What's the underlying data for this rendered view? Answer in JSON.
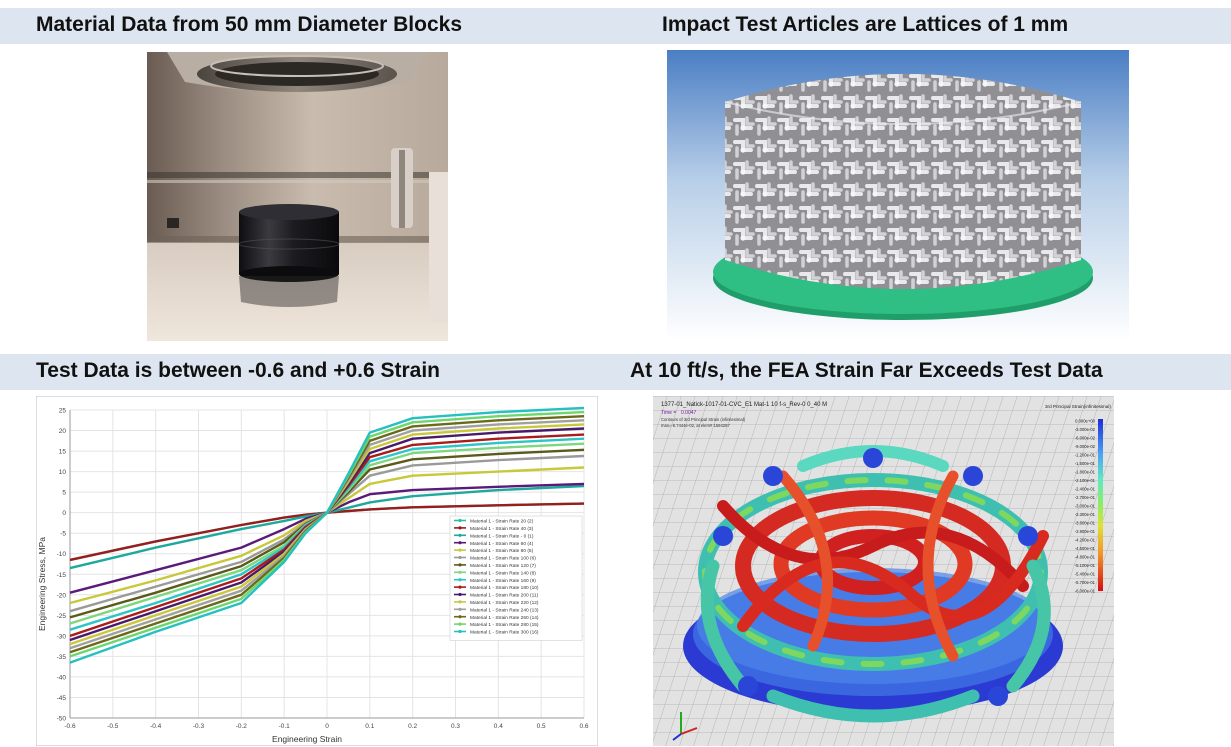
{
  "headings": {
    "top_left": "Material Data from 50 mm Diameter Blocks",
    "top_right": "Impact Test Articles are Lattices of 1 mm",
    "bottom_left": "Test Data is between -0.6 and +0.6 Strain",
    "bottom_right": "At 10 ft/s, the FEA Strain Far Exceeds Test Data"
  },
  "fea": {
    "title": "1377-01_Natick-1017-01-CVC_E1 Mat-1 10 f-s_Rev-0 0_40 M",
    "time_label": "Time =",
    "time_value": "0.0047",
    "contour_line1": "Contours of 3rd Principal Strain (infinitesimal)",
    "contour_line2": "max=-6.7444e-02, at elem# 1594287",
    "legend_title": "3rd Principal Strain(infinitesimal)",
    "legend_values": [
      "0.000e+00",
      "-3.000e-02",
      "-6.000e-02",
      "-9.000e-02",
      "-1.200e-01",
      "-1.500e-01",
      "-1.800e-01",
      "-2.100e-01",
      "-2.400e-01",
      "-2.700e-01",
      "-3.000e-01",
      "-3.300e-01",
      "-3.600e-01",
      "-3.900e-01",
      "-4.200e-01",
      "-4.500e-01",
      "-4.800e-01",
      "-5.100e-01",
      "-5.400e-01",
      "-5.700e-01",
      "-6.000e-01"
    ],
    "legend_colors": [
      "#1e2cd8",
      "#2a4ce8",
      "#3a74f0",
      "#4aa0f4",
      "#52c4f0",
      "#58dce0",
      "#5ee8c4",
      "#66eca4",
      "#76ee84",
      "#8cee62",
      "#a6ec48",
      "#c2e83c",
      "#dce236",
      "#ecd030",
      "#f2b42c",
      "#f29628",
      "#ee7624",
      "#e85620",
      "#e2381c",
      "#dc2018",
      "#d80c14"
    ]
  },
  "chart_data": {
    "type": "line",
    "title": "",
    "xlabel": "Engineering Strain",
    "ylabel": "Engineering Stress, MPa",
    "xlim": [
      -0.6,
      0.6
    ],
    "ylim": [
      -50,
      25
    ],
    "xticks": [
      "-0.6",
      "-0.5",
      "-0.4",
      "-0.3",
      "-0.2",
      "-0.1",
      "0",
      "0.1",
      "0.2",
      "0.3",
      "0.4",
      "0.5",
      "0.6"
    ],
    "yticks": [
      "25",
      "20",
      "15",
      "10",
      "5",
      "0",
      "-5",
      "-10",
      "-15",
      "-20",
      "-25",
      "-30",
      "-35",
      "-40",
      "-45",
      "-50"
    ],
    "grid": true,
    "legend_position": "right",
    "series": [
      {
        "name": "Material 1 - Strain Rate 20 (2)",
        "color": "#2fbfa0",
        "x": [
          -0.6,
          -0.4,
          -0.2,
          -0.1,
          -0.05,
          0,
          0.05,
          0.1,
          0.2,
          0.4,
          0.6
        ],
        "y": [
          -11.5,
          -7,
          -3,
          -1.2,
          -0.5,
          0,
          0.4,
          0.8,
          1.3,
          1.8,
          2.2
        ]
      },
      {
        "name": "Material 1 - Strain Rate 40 (3)",
        "color": "#9b1c1c",
        "x": [
          -0.6,
          -0.4,
          -0.2,
          -0.1,
          -0.05,
          0,
          0.05,
          0.1,
          0.2,
          0.4,
          0.6
        ],
        "y": [
          -11.5,
          -7,
          -3,
          -1.2,
          -0.5,
          0,
          0.4,
          0.8,
          1.3,
          1.8,
          2.2
        ]
      },
      {
        "name": "Material 1 - Strain Rate - 0 (1)",
        "color": "#1fa89c",
        "x": [
          -0.6,
          -0.4,
          -0.2,
          -0.1,
          -0.05,
          0,
          0.05,
          0.1,
          0.2,
          0.4,
          0.6
        ],
        "y": [
          -13.5,
          -8.5,
          -4,
          -2,
          -0.9,
          0,
          1.2,
          2.5,
          4,
          5.5,
          6.5
        ]
      },
      {
        "name": "Material 1 - Strain Rate 60 (4)",
        "color": "#5a1a7a",
        "x": [
          -0.6,
          -0.4,
          -0.2,
          -0.1,
          -0.05,
          0,
          0.05,
          0.1,
          0.2,
          0.4,
          0.6
        ],
        "y": [
          -19.5,
          -14,
          -8.5,
          -4,
          -1.5,
          0,
          2.5,
          4.5,
          5.5,
          6.3,
          7
        ]
      },
      {
        "name": "Material 1 - Strain Rate 80 (5)",
        "color": "#c8c83a",
        "x": [
          -0.6,
          -0.4,
          -0.2,
          -0.1,
          -0.05,
          0,
          0.05,
          0.1,
          0.2,
          0.4,
          0.6
        ],
        "y": [
          -22,
          -16.5,
          -10.5,
          -5.5,
          -2,
          0,
          3.5,
          7,
          9,
          10,
          11
        ]
      },
      {
        "name": "Material 1 - Strain Rate 100 (6)",
        "color": "#9a9a9a",
        "x": [
          -0.6,
          -0.4,
          -0.2,
          -0.1,
          -0.05,
          0,
          0.05,
          0.1,
          0.2,
          0.4,
          0.6
        ],
        "y": [
          -24,
          -18,
          -12,
          -6.5,
          -2.5,
          0,
          4.5,
          9,
          11.5,
          12.8,
          13.8
        ]
      },
      {
        "name": "Material 1 - Strain Rate 120 (7)",
        "color": "#5a5a1a",
        "x": [
          -0.6,
          -0.4,
          -0.2,
          -0.1,
          -0.05,
          0,
          0.05,
          0.1,
          0.2,
          0.4,
          0.6
        ],
        "y": [
          -25.5,
          -19.5,
          -13,
          -7.2,
          -2.8,
          0,
          5,
          10.5,
          13,
          14.3,
          15.3
        ]
      },
      {
        "name": "Material 1 - Strain Rate 140 (8)",
        "color": "#7ed67e",
        "x": [
          -0.6,
          -0.4,
          -0.2,
          -0.1,
          -0.05,
          0,
          0.05,
          0.1,
          0.2,
          0.4,
          0.6
        ],
        "y": [
          -27,
          -20.5,
          -14,
          -8,
          -3,
          0,
          5.5,
          11.5,
          14.5,
          15.8,
          16.8
        ]
      },
      {
        "name": "Material 1 - Strain Rate 160 (9)",
        "color": "#2cc6c6",
        "x": [
          -0.6,
          -0.4,
          -0.2,
          -0.1,
          -0.05,
          0,
          0.05,
          0.1,
          0.2,
          0.4,
          0.6
        ],
        "y": [
          -28.5,
          -22,
          -15,
          -8.5,
          -3.2,
          0,
          6,
          12.5,
          15.5,
          17,
          18
        ]
      },
      {
        "name": "Material 1 - Strain Rate 180 (10)",
        "color": "#aa1c1c",
        "x": [
          -0.6,
          -0.4,
          -0.2,
          -0.1,
          -0.05,
          0,
          0.05,
          0.1,
          0.2,
          0.4,
          0.6
        ],
        "y": [
          -30,
          -23,
          -16,
          -9,
          -3.5,
          0,
          6.5,
          13.5,
          16.5,
          18,
          19
        ]
      },
      {
        "name": "Material 1 - Strain Rate 200 (11)",
        "color": "#4a1a6a",
        "x": [
          -0.6,
          -0.4,
          -0.2,
          -0.1,
          -0.05,
          0,
          0.05,
          0.1,
          0.2,
          0.4,
          0.6
        ],
        "y": [
          -31,
          -24,
          -17,
          -9.5,
          -3.8,
          0,
          7,
          14.5,
          18,
          19.5,
          20.5
        ]
      },
      {
        "name": "Material 1 - Strain Rate 220 (12)",
        "color": "#c8c83a",
        "x": [
          -0.6,
          -0.4,
          -0.2,
          -0.1,
          -0.05,
          0,
          0.05,
          0.1,
          0.2,
          0.4,
          0.6
        ],
        "y": [
          -32,
          -25,
          -18,
          -10,
          -4,
          0,
          7.5,
          15.5,
          19,
          20.5,
          21.5
        ]
      },
      {
        "name": "Material 1 - Strain Rate 240 (13)",
        "color": "#a0a0a0",
        "x": [
          -0.6,
          -0.4,
          -0.2,
          -0.1,
          -0.05,
          0,
          0.05,
          0.1,
          0.2,
          0.4,
          0.6
        ],
        "y": [
          -33,
          -26,
          -19,
          -10.5,
          -4.2,
          0,
          8,
          16.5,
          20,
          21.5,
          22.5
        ]
      },
      {
        "name": "Material 1 - Strain Rate 260 (14)",
        "color": "#6a6a1a",
        "x": [
          -0.6,
          -0.4,
          -0.2,
          -0.1,
          -0.05,
          0,
          0.05,
          0.1,
          0.2,
          0.4,
          0.6
        ],
        "y": [
          -34,
          -27,
          -20,
          -11,
          -4.5,
          0,
          8.5,
          17.5,
          21,
          22.5,
          23.5
        ]
      },
      {
        "name": "Material 1 - Strain Rate 280 (15)",
        "color": "#6ed66e",
        "x": [
          -0.6,
          -0.4,
          -0.2,
          -0.1,
          -0.05,
          0,
          0.05,
          0.1,
          0.2,
          0.4,
          0.6
        ],
        "y": [
          -35,
          -28,
          -21,
          -11.5,
          -4.8,
          0,
          9,
          18.5,
          22,
          23.5,
          24.5
        ]
      },
      {
        "name": "Material 1 - Strain Rate 300 (16)",
        "color": "#26c0c0",
        "x": [
          -0.6,
          -0.4,
          -0.2,
          -0.1,
          -0.05,
          0,
          0.05,
          0.1,
          0.2,
          0.4,
          0.6
        ],
        "y": [
          -36.5,
          -29,
          -22,
          -12,
          -5,
          0,
          9.5,
          19.5,
          23,
          24.5,
          25.5
        ]
      }
    ]
  }
}
